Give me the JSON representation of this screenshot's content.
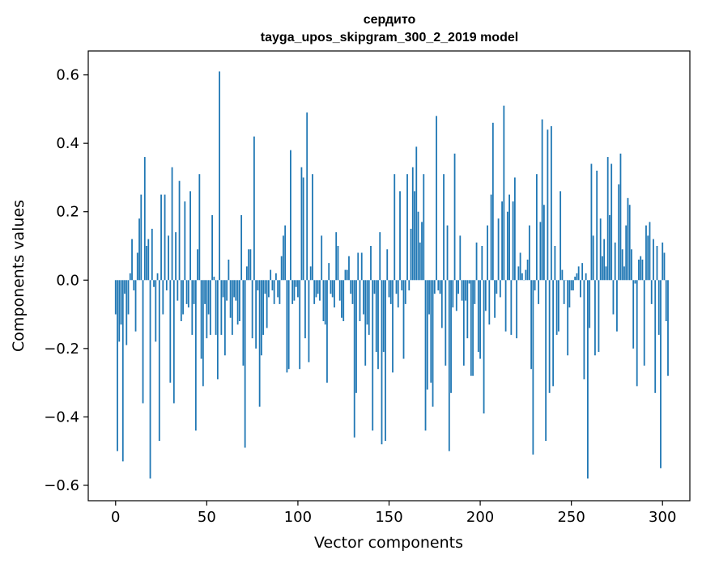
{
  "chart_data": {
    "type": "bar",
    "title": "сердито",
    "subtitle": "tayga_upos_skipgram_300_2_2019 model",
    "xlabel": "Vector components",
    "ylabel": "Components values",
    "xlim": [
      -15,
      315
    ],
    "ylim": [
      -0.645,
      0.67
    ],
    "xticks": [
      0,
      50,
      100,
      150,
      200,
      250,
      300
    ],
    "yticks": [
      -0.6,
      -0.4,
      -0.2,
      0.0,
      0.2,
      0.4,
      0.6
    ],
    "xtick_labels": [
      "0",
      "50",
      "100",
      "150",
      "200",
      "250",
      "300"
    ],
    "ytick_labels": [
      "−0.6",
      "−0.4",
      "−0.2",
      "0.0",
      "0.2",
      "0.4",
      "0.6"
    ],
    "bar_color": "#1f77b4",
    "grid": false,
    "values": [
      -0.1,
      -0.5,
      -0.18,
      -0.13,
      -0.53,
      -0.04,
      -0.19,
      -0.1,
      0.02,
      0.12,
      -0.03,
      -0.15,
      0.08,
      0.18,
      0.25,
      -0.36,
      0.36,
      0.1,
      0.12,
      -0.58,
      0.15,
      -0.02,
      -0.18,
      0.02,
      -0.47,
      0.25,
      -0.1,
      0.25,
      -0.03,
      0.13,
      -0.3,
      0.33,
      -0.36,
      0.14,
      -0.06,
      0.29,
      -0.12,
      -0.1,
      0.23,
      -0.07,
      -0.08,
      0.26,
      -0.16,
      -0.07,
      -0.44,
      0.09,
      0.31,
      -0.23,
      -0.31,
      -0.07,
      -0.17,
      -0.1,
      -0.16,
      0.19,
      0.01,
      -0.16,
      -0.29,
      0.61,
      -0.16,
      -0.05,
      -0.22,
      -0.06,
      0.06,
      -0.11,
      -0.16,
      -0.05,
      -0.06,
      -0.13,
      -0.12,
      0.19,
      -0.25,
      -0.49,
      0.04,
      0.09,
      0.09,
      -0.17,
      0.42,
      -0.2,
      -0.03,
      -0.37,
      -0.22,
      -0.16,
      -0.04,
      -0.14,
      -0.05,
      0.03,
      -0.03,
      -0.07,
      0.02,
      -0.05,
      -0.07,
      0.07,
      0.13,
      0.16,
      -0.27,
      -0.26,
      0.38,
      -0.07,
      -0.06,
      -0.02,
      -0.05,
      -0.26,
      0.33,
      0.3,
      -0.17,
      0.49,
      -0.24,
      0.04,
      0.31,
      -0.07,
      -0.05,
      -0.04,
      -0.06,
      0.13,
      -0.12,
      -0.13,
      -0.3,
      0.05,
      -0.04,
      -0.05,
      -0.08,
      0.14,
      0.1,
      -0.06,
      -0.11,
      -0.12,
      0.03,
      0.03,
      0.07,
      -0.04,
      -0.07,
      -0.46,
      -0.33,
      0.08,
      -0.12,
      0.08,
      -0.1,
      -0.25,
      -0.13,
      -0.16,
      0.1,
      -0.44,
      -0.04,
      -0.21,
      -0.26,
      0.14,
      -0.48,
      -0.21,
      -0.47,
      0.09,
      -0.05,
      -0.07,
      -0.27,
      0.31,
      -0.04,
      -0.08,
      0.26,
      -0.03,
      -0.23,
      -0.07,
      0.31,
      -0.03,
      0.15,
      0.33,
      0.26,
      0.39,
      0.2,
      0.11,
      0.17,
      0.31,
      -0.44,
      -0.32,
      -0.1,
      -0.3,
      -0.37,
      -0.04,
      0.48,
      -0.03,
      -0.04,
      -0.14,
      0.31,
      -0.25,
      0.16,
      -0.5,
      -0.33,
      -0.08,
      0.37,
      -0.09,
      -0.04,
      0.13,
      -0.06,
      -0.25,
      -0.06,
      -0.17,
      -0.01,
      -0.28,
      -0.28,
      -0.07,
      0.11,
      -0.21,
      -0.23,
      0.1,
      -0.39,
      -0.09,
      0.16,
      -0.13,
      0.25,
      0.46,
      -0.11,
      -0.04,
      0.18,
      -0.05,
      0.23,
      0.51,
      -0.15,
      0.2,
      0.25,
      -0.16,
      0.23,
      0.3,
      -0.17,
      0.04,
      0.08,
      0.02,
      0.0,
      0.03,
      0.06,
      0.16,
      -0.26,
      -0.51,
      -0.03,
      0.31,
      -0.07,
      0.17,
      0.47,
      0.22,
      -0.47,
      0.44,
      -0.33,
      0.45,
      -0.31,
      0.1,
      -0.16,
      -0.15,
      0.26,
      0.03,
      -0.07,
      0.0,
      -0.22,
      -0.08,
      -0.03,
      -0.03,
      0.01,
      0.02,
      0.04,
      -0.05,
      0.05,
      -0.29,
      0.02,
      -0.58,
      -0.14,
      0.34,
      0.13,
      -0.22,
      0.32,
      -0.21,
      0.18,
      0.07,
      0.12,
      0.04,
      0.36,
      0.19,
      0.34,
      -0.1,
      0.11,
      -0.15,
      0.28,
      0.37,
      0.09,
      0.04,
      0.16,
      0.24,
      0.22,
      0.09,
      -0.2,
      -0.01,
      -0.31,
      0.06,
      0.07,
      0.06,
      -0.25,
      0.16,
      0.13,
      0.17,
      -0.07,
      0.12,
      -0.33,
      0.1,
      -0.16,
      -0.55,
      0.11,
      0.08,
      -0.12,
      -0.28
    ]
  }
}
